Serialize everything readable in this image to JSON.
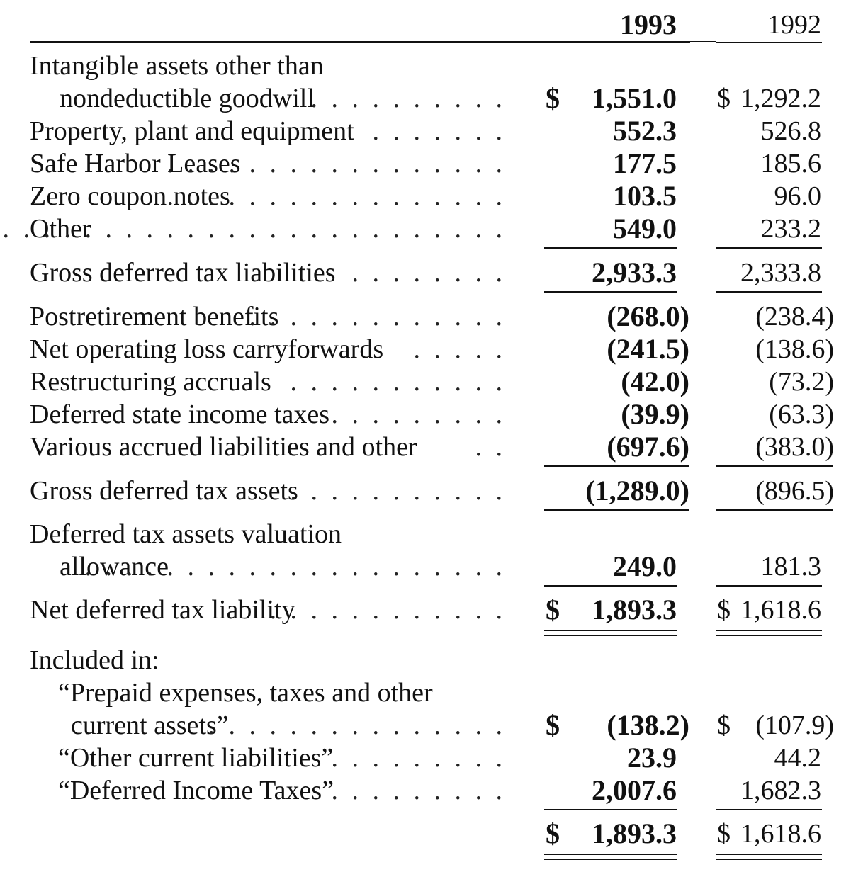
{
  "header": {
    "col_1993": "1993",
    "col_1992": "1992"
  },
  "rows": {
    "intangible_l1": "Intangible assets other than",
    "intangible_l2": "nondeductible goodwill",
    "intangible_1993": "1,551.0",
    "intangible_1992": "1,292.2",
    "ppe": "Property, plant and equipment",
    "ppe_1993": "552.3",
    "ppe_1992": "526.8",
    "safe_harbor": "Safe Harbor Leases",
    "safe_harbor_1993": "177.5",
    "safe_harbor_1992": "185.6",
    "zero_coupon": "Zero coupon notes",
    "zero_coupon_1993": "103.5",
    "zero_coupon_1992": "96.0",
    "other": "Other",
    "other_1993": "549.0",
    "other_1992": "233.2",
    "gross_liab": "Gross deferred tax liabilities",
    "gross_liab_1993": "2,933.3",
    "gross_liab_1992": "2,333.8",
    "postret": "Postretirement benefits",
    "postret_1993": "(268.0)",
    "postret_1992": "(238.4)",
    "nol": "Net operating loss carryforwards",
    "nol_1993": "(241.5)",
    "nol_1992": "(138.6)",
    "restructuring": "Restructuring accruals",
    "restructuring_1993": "(42.0)",
    "restructuring_1992": "(73.2)",
    "def_state": "Deferred state income taxes",
    "def_state_1993": "(39.9)",
    "def_state_1992": "(63.3)",
    "various": "Various accrued liabilities and other",
    "various_1993": "(697.6)",
    "various_1992": "(383.0)",
    "gross_assets": "Gross deferred tax assets",
    "gross_assets_1993": "(1,289.0)",
    "gross_assets_1992": "(896.5)",
    "valuation_l1": "Deferred tax assets valuation",
    "valuation_l2": "allowance",
    "valuation_1993": "249.0",
    "valuation_1992": "181.3",
    "net_liab": "Net deferred tax liability",
    "net_liab_1993": "1,893.3",
    "net_liab_1992": "1,618.6",
    "included_in": "Included in:",
    "prepaid_l1": "“Prepaid expenses, taxes and other",
    "prepaid_l2": "current assets”",
    "prepaid_1993": "(138.2)",
    "prepaid_1992": "(107.9)",
    "other_cl": "“Other current liabilities”",
    "other_cl_1993": "23.9",
    "other_cl_1992": "44.2",
    "dit": "“Deferred Income Taxes”",
    "dit_1993": "2,007.6",
    "dit_1992": "1,682.3",
    "total_1993": "1,893.3",
    "total_1992": "1,618.6"
  },
  "currency_symbol": "$"
}
